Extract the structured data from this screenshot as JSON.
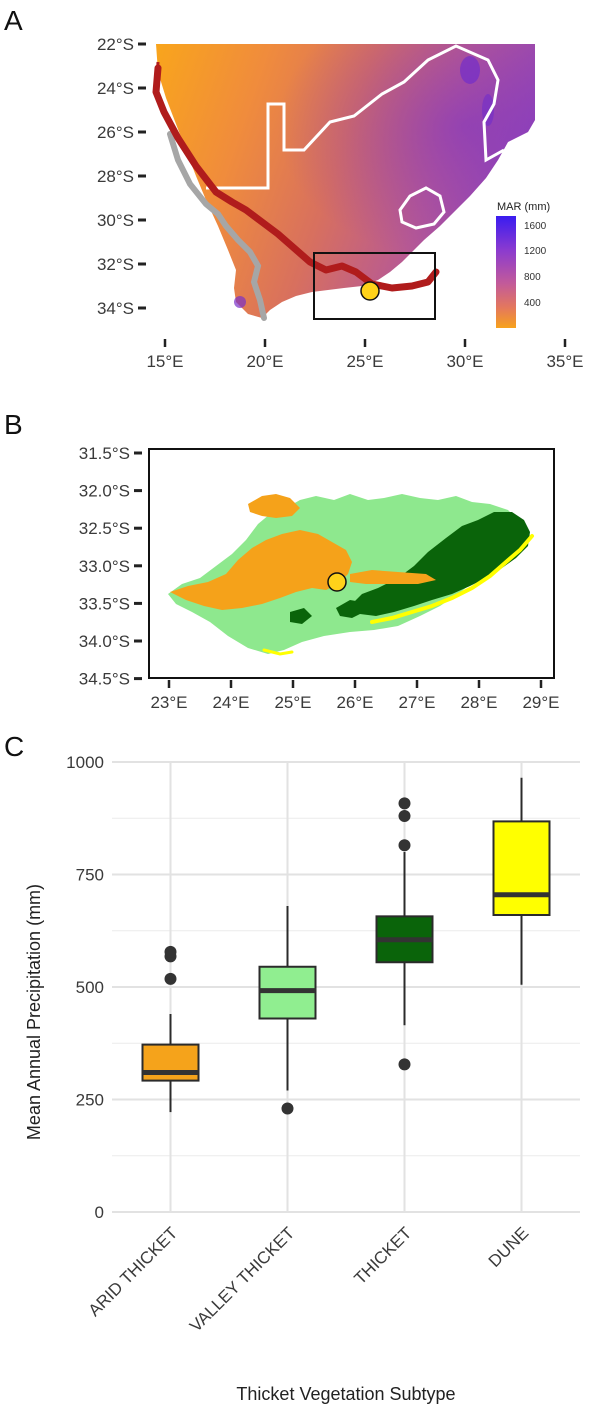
{
  "panels": {
    "a": "A",
    "b": "B",
    "c": "C"
  },
  "map_a": {
    "lat_labels": [
      "22°S",
      "24°S",
      "26°S",
      "28°S",
      "30°S",
      "32°S",
      "34°S"
    ],
    "lon_labels": [
      "15°E",
      "20°E",
      "25°E",
      "30°E",
      "35°E"
    ],
    "legend": {
      "title": "MAR (mm)",
      "ticks": [
        "1600",
        "1200",
        "800",
        "400"
      ],
      "colors": [
        "#3a1cf0",
        "#8a3ad0",
        "#c25a9a",
        "#e4785c",
        "#f7a21c"
      ]
    },
    "boundary_color": "#b01c1c",
    "inset_frame": "study area box"
  },
  "map_b": {
    "lat_labels": [
      "31.5°S",
      "32.0°S",
      "32.5°S",
      "33.0°S",
      "33.5°S",
      "34.0°S",
      "34.5°S"
    ],
    "lon_labels": [
      "23°E",
      "24°E",
      "25°E",
      "26°E",
      "27°E",
      "28°E",
      "29°E"
    ],
    "subtype_colors": {
      "arid": "#f5a21a",
      "valley": "#8ee88e",
      "thicket": "#0a640a",
      "dune": "#ffff00"
    }
  },
  "chart_data": {
    "type": "box",
    "categories": [
      "ARID THICKET",
      "VALLEY THICKET",
      "THICKET",
      "DUNE"
    ],
    "xlabel": "Thicket Vegetation Subtype",
    "ylabel": "Mean Annual Precipitation (mm)",
    "ylim": [
      0,
      1000
    ],
    "yticks": [
      "0",
      "250",
      "500",
      "750",
      "1000"
    ],
    "grid": true,
    "colors": [
      "#f5a31b",
      "#90ee90",
      "#0a640a",
      "#ffff00"
    ],
    "boxes": [
      {
        "min": 222,
        "q1": 292,
        "median": 310,
        "q3": 372,
        "max": 440,
        "outliers": [
          518,
          568,
          578
        ]
      },
      {
        "min": 270,
        "q1": 430,
        "median": 492,
        "q3": 545,
        "max": 680,
        "outliers": [
          230
        ]
      },
      {
        "min": 415,
        "q1": 555,
        "median": 605,
        "q3": 657,
        "max": 800,
        "outliers": [
          328,
          815,
          880,
          908
        ]
      },
      {
        "min": 505,
        "q1": 660,
        "median": 705,
        "q3": 868,
        "max": 965,
        "outliers": []
      }
    ]
  }
}
